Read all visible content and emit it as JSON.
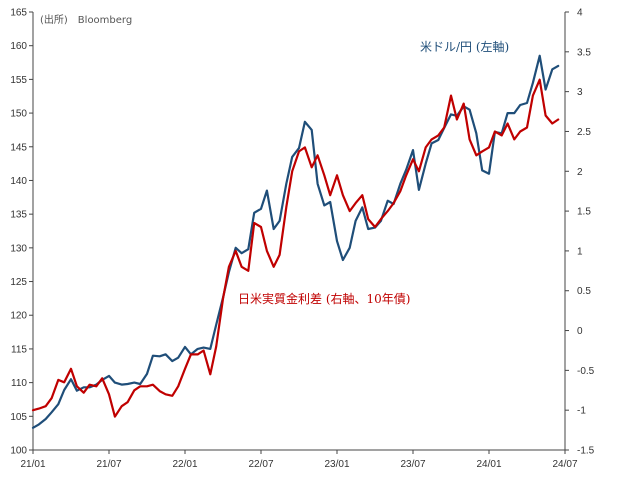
{
  "source_note": "(出所)　Bloomberg",
  "chart_data": {
    "type": "line",
    "x_ticks": [
      "21/01",
      "21/07",
      "22/01",
      "22/07",
      "23/01",
      "23/07",
      "24/01",
      "24/07"
    ],
    "x_range": [
      "2021-01",
      "2024-07"
    ],
    "left_axis": {
      "ticks": [
        100,
        105,
        110,
        115,
        120,
        125,
        130,
        135,
        140,
        145,
        150,
        155,
        160,
        165
      ],
      "ylim": [
        100,
        165
      ]
    },
    "right_axis": {
      "ticks": [
        -1.5,
        -1,
        -0.5,
        0,
        0.5,
        1,
        1.5,
        2,
        2.5,
        3,
        3.5,
        4
      ],
      "ylim": [
        -1.5,
        4
      ]
    },
    "grid": false,
    "series": [
      {
        "name": "米ドル/円 (左軸)",
        "axis": "left",
        "color": "#1f4e79",
        "points": [
          [
            "2021-01-01",
            103.3
          ],
          [
            "2021-01-15",
            103.8
          ],
          [
            "2021-02-01",
            104.6
          ],
          [
            "2021-02-15",
            105.6
          ],
          [
            "2021-03-01",
            106.8
          ],
          [
            "2021-03-15",
            108.9
          ],
          [
            "2021-04-01",
            110.5
          ],
          [
            "2021-04-15",
            108.8
          ],
          [
            "2021-05-01",
            109.3
          ],
          [
            "2021-05-15",
            109.3
          ],
          [
            "2021-06-01",
            109.7
          ],
          [
            "2021-06-15",
            110.4
          ],
          [
            "2021-07-01",
            111.0
          ],
          [
            "2021-07-15",
            110.0
          ],
          [
            "2021-08-01",
            109.7
          ],
          [
            "2021-08-15",
            109.8
          ],
          [
            "2021-09-01",
            110.0
          ],
          [
            "2021-09-15",
            109.8
          ],
          [
            "2021-10-01",
            111.3
          ],
          [
            "2021-10-15",
            114.0
          ],
          [
            "2021-11-01",
            113.9
          ],
          [
            "2021-11-15",
            114.2
          ],
          [
            "2021-12-01",
            113.2
          ],
          [
            "2021-12-15",
            113.7
          ],
          [
            "2022-01-01",
            115.3
          ],
          [
            "2022-01-15",
            114.2
          ],
          [
            "2022-02-01",
            115.0
          ],
          [
            "2022-02-15",
            115.2
          ],
          [
            "2022-03-01",
            115.0
          ],
          [
            "2022-03-15",
            118.6
          ],
          [
            "2022-04-01",
            122.6
          ],
          [
            "2022-04-15",
            126.4
          ],
          [
            "2022-05-01",
            130.0
          ],
          [
            "2022-05-15",
            129.2
          ],
          [
            "2022-06-01",
            129.8
          ],
          [
            "2022-06-15",
            135.2
          ],
          [
            "2022-07-01",
            135.8
          ],
          [
            "2022-07-15",
            138.5
          ],
          [
            "2022-08-01",
            132.8
          ],
          [
            "2022-08-15",
            134.0
          ],
          [
            "2022-09-01",
            139.5
          ],
          [
            "2022-09-15",
            143.5
          ],
          [
            "2022-10-01",
            144.8
          ],
          [
            "2022-10-15",
            148.7
          ],
          [
            "2022-11-01",
            147.5
          ],
          [
            "2022-11-15",
            139.5
          ],
          [
            "2022-12-01",
            136.3
          ],
          [
            "2022-12-15",
            136.8
          ],
          [
            "2023-01-01",
            131.0
          ],
          [
            "2023-01-15",
            128.2
          ],
          [
            "2023-02-01",
            130.0
          ],
          [
            "2023-02-15",
            134.0
          ],
          [
            "2023-03-01",
            136.0
          ],
          [
            "2023-03-15",
            132.8
          ],
          [
            "2023-04-01",
            133.0
          ],
          [
            "2023-04-15",
            134.0
          ],
          [
            "2023-05-01",
            137.0
          ],
          [
            "2023-05-15",
            136.5
          ],
          [
            "2023-06-01",
            139.5
          ],
          [
            "2023-06-15",
            141.6
          ],
          [
            "2023-07-01",
            144.5
          ],
          [
            "2023-07-15",
            138.6
          ],
          [
            "2023-08-01",
            142.5
          ],
          [
            "2023-08-15",
            145.5
          ],
          [
            "2023-09-01",
            146.0
          ],
          [
            "2023-09-15",
            147.8
          ],
          [
            "2023-10-01",
            149.8
          ],
          [
            "2023-10-15",
            149.6
          ],
          [
            "2023-11-01",
            151.0
          ],
          [
            "2023-11-15",
            150.5
          ],
          [
            "2023-12-01",
            147.0
          ],
          [
            "2023-12-15",
            141.5
          ],
          [
            "2024-01-01",
            141.0
          ],
          [
            "2024-01-15",
            147.2
          ],
          [
            "2024-02-01",
            147.0
          ],
          [
            "2024-02-15",
            150.0
          ],
          [
            "2024-03-01",
            150.0
          ],
          [
            "2024-03-15",
            151.2
          ],
          [
            "2024-04-01",
            151.5
          ],
          [
            "2024-04-15",
            154.5
          ],
          [
            "2024-05-01",
            158.5
          ],
          [
            "2024-05-15",
            153.5
          ],
          [
            "2024-06-01",
            156.5
          ],
          [
            "2024-06-15",
            157.0
          ]
        ]
      },
      {
        "name": "日米実質金利差 (右軸、10年債)",
        "axis": "right",
        "color": "#c00000",
        "points": [
          [
            "2021-01-01",
            -1.0
          ],
          [
            "2021-01-15",
            -0.98
          ],
          [
            "2021-02-01",
            -0.95
          ],
          [
            "2021-02-15",
            -0.85
          ],
          [
            "2021-03-01",
            -0.62
          ],
          [
            "2021-03-15",
            -0.65
          ],
          [
            "2021-04-01",
            -0.48
          ],
          [
            "2021-04-15",
            -0.7
          ],
          [
            "2021-05-01",
            -0.78
          ],
          [
            "2021-05-15",
            -0.68
          ],
          [
            "2021-06-01",
            -0.7
          ],
          [
            "2021-06-15",
            -0.6
          ],
          [
            "2021-07-01",
            -0.8
          ],
          [
            "2021-07-15",
            -1.08
          ],
          [
            "2021-08-01",
            -0.95
          ],
          [
            "2021-08-15",
            -0.9
          ],
          [
            "2021-09-01",
            -0.75
          ],
          [
            "2021-09-15",
            -0.7
          ],
          [
            "2021-10-01",
            -0.7
          ],
          [
            "2021-10-15",
            -0.68
          ],
          [
            "2021-11-01",
            -0.76
          ],
          [
            "2021-11-15",
            -0.8
          ],
          [
            "2021-12-01",
            -0.82
          ],
          [
            "2021-12-15",
            -0.7
          ],
          [
            "2022-01-01",
            -0.48
          ],
          [
            "2022-01-15",
            -0.3
          ],
          [
            "2022-02-01",
            -0.3
          ],
          [
            "2022-02-15",
            -0.25
          ],
          [
            "2022-03-01",
            -0.55
          ],
          [
            "2022-03-15",
            -0.2
          ],
          [
            "2022-04-01",
            0.4
          ],
          [
            "2022-04-15",
            0.8
          ],
          [
            "2022-05-01",
            1.0
          ],
          [
            "2022-05-15",
            0.8
          ],
          [
            "2022-06-01",
            0.75
          ],
          [
            "2022-06-15",
            1.35
          ],
          [
            "2022-07-01",
            1.3
          ],
          [
            "2022-07-15",
            1.0
          ],
          [
            "2022-08-01",
            0.8
          ],
          [
            "2022-08-15",
            0.95
          ],
          [
            "2022-09-01",
            1.55
          ],
          [
            "2022-09-15",
            2.0
          ],
          [
            "2022-10-01",
            2.25
          ],
          [
            "2022-10-15",
            2.3
          ],
          [
            "2022-11-01",
            2.05
          ],
          [
            "2022-11-15",
            2.2
          ],
          [
            "2022-12-01",
            1.95
          ],
          [
            "2022-12-15",
            1.7
          ],
          [
            "2023-01-01",
            1.95
          ],
          [
            "2023-01-15",
            1.7
          ],
          [
            "2023-02-01",
            1.5
          ],
          [
            "2023-02-15",
            1.6
          ],
          [
            "2023-03-01",
            1.7
          ],
          [
            "2023-03-15",
            1.4
          ],
          [
            "2023-04-01",
            1.3
          ],
          [
            "2023-04-15",
            1.4
          ],
          [
            "2023-05-01",
            1.5
          ],
          [
            "2023-05-15",
            1.6
          ],
          [
            "2023-06-01",
            1.75
          ],
          [
            "2023-06-15",
            1.95
          ],
          [
            "2023-07-01",
            2.15
          ],
          [
            "2023-07-15",
            2.0
          ],
          [
            "2023-08-01",
            2.3
          ],
          [
            "2023-08-15",
            2.4
          ],
          [
            "2023-09-01",
            2.45
          ],
          [
            "2023-09-15",
            2.55
          ],
          [
            "2023-10-01",
            2.95
          ],
          [
            "2023-10-15",
            2.65
          ],
          [
            "2023-11-01",
            2.85
          ],
          [
            "2023-11-15",
            2.4
          ],
          [
            "2023-12-01",
            2.2
          ],
          [
            "2023-12-15",
            2.25
          ],
          [
            "2024-01-01",
            2.3
          ],
          [
            "2024-01-15",
            2.5
          ],
          [
            "2024-02-01",
            2.45
          ],
          [
            "2024-02-15",
            2.6
          ],
          [
            "2024-03-01",
            2.4
          ],
          [
            "2024-03-15",
            2.5
          ],
          [
            "2024-04-01",
            2.55
          ],
          [
            "2024-04-15",
            2.95
          ],
          [
            "2024-05-01",
            3.15
          ],
          [
            "2024-05-15",
            2.7
          ],
          [
            "2024-06-01",
            2.6
          ],
          [
            "2024-06-15",
            2.65
          ]
        ]
      }
    ],
    "annotations": [
      {
        "text": "米ドル/円 (左軸)",
        "series": 0
      },
      {
        "text": "日米実質金利差 (右軸、10年債)",
        "series": 1
      }
    ]
  }
}
